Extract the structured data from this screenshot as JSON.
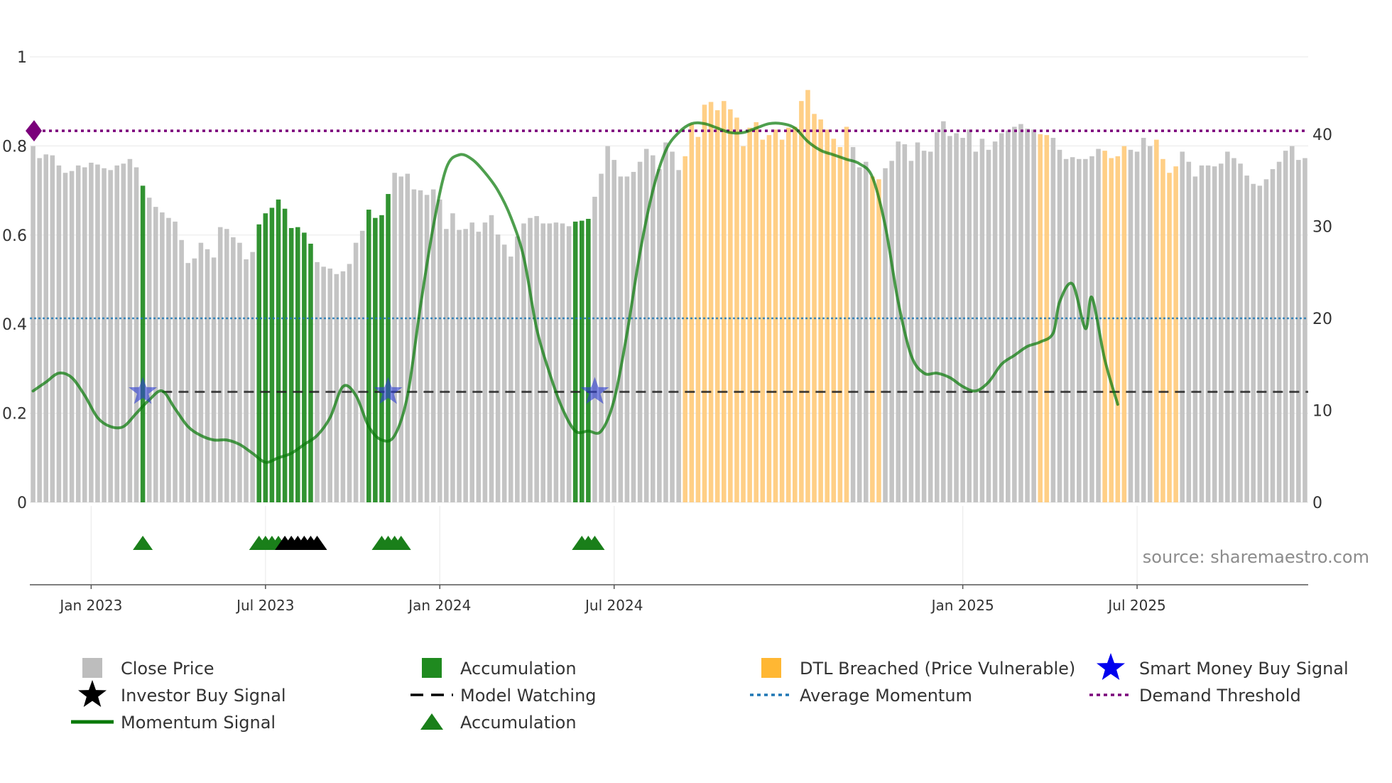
{
  "chart_data": {
    "type": "bar",
    "title": "",
    "source": "source: sharemaestro.com",
    "left_axis": {
      "range": [
        0,
        1
      ],
      "ticks": [
        0,
        0.2,
        0.4,
        0.6,
        0.8,
        1
      ],
      "tick_labels": [
        "0",
        "0.2",
        "0.4",
        "0.6",
        "0.8",
        "1"
      ]
    },
    "right_axis": {
      "range": [
        0,
        48.4
      ],
      "ticks": [
        0,
        10,
        20,
        30,
        40
      ],
      "tick_labels": [
        "0",
        "10",
        "20",
        "30",
        "40"
      ]
    },
    "x_axis": {
      "tick_labels": [
        "Jan 2023",
        "Jul 2023",
        "Jan 2024",
        "Jul 2024",
        "Jan 2025",
        "Jul 2025"
      ],
      "tick_bar_index": [
        9,
        36,
        63,
        90,
        144,
        171
      ]
    },
    "series": {
      "close_price": {
        "name": "Close Price",
        "values": [
          38.7,
          37.4,
          37.8,
          37.7,
          36.6,
          35.8,
          36.0,
          36.6,
          36.4,
          36.9,
          36.7,
          36.3,
          36.1,
          36.6,
          36.8,
          37.3,
          36.4,
          34.4,
          33.1,
          32.1,
          31.5,
          30.9,
          30.5,
          28.5,
          26.0,
          26.5,
          28.2,
          27.5,
          26.6,
          29.9,
          29.7,
          28.8,
          28.2,
          26.4,
          27.2,
          30.2,
          31.4,
          32.0,
          32.9,
          31.9,
          29.8,
          29.9,
          29.3,
          28.1,
          26.1,
          25.6,
          25.4,
          24.8,
          25.1,
          25.9,
          28.2,
          29.5,
          31.8,
          30.9,
          31.2,
          33.5,
          35.8,
          35.4,
          35.7,
          34.0,
          33.9,
          33.4,
          34.0,
          32.9,
          29.7,
          31.4,
          29.6,
          29.7,
          30.4,
          29.4,
          30.4,
          31.2,
          29.1,
          28.0,
          26.7,
          28.9,
          30.3,
          30.9,
          31.1,
          30.3,
          30.3,
          30.4,
          30.3,
          30.0,
          30.5,
          30.6,
          30.8,
          33.2,
          35.7,
          38.7,
          37.2,
          35.4,
          35.4,
          35.9,
          37.0,
          38.4,
          37.7,
          36.2,
          39.1,
          38.1,
          36.1,
          37.6,
          41.1,
          39.7,
          43.2,
          43.5,
          42.6,
          43.6,
          42.7,
          41.8,
          38.7,
          40.7,
          41.3,
          39.4,
          39.9,
          40.5,
          39.4,
          40.7,
          40.8,
          43.6,
          44.8,
          42.2,
          41.6,
          40.5,
          39.5,
          38.6,
          40.8,
          38.6,
          36.4,
          37.0,
          35.4,
          35.1,
          36.3,
          37.1,
          39.2,
          38.9,
          37.1,
          39.1,
          38.2,
          38.1,
          40.2,
          41.4,
          39.8,
          40.1,
          39.6,
          40.5,
          38.1,
          39.5,
          38.3,
          39.2,
          40.1,
          40.4,
          40.8,
          41.1,
          40.6,
          40.5,
          40.0,
          39.9,
          39.6,
          38.3,
          37.3,
          37.5,
          37.3,
          37.3,
          37.6,
          38.4,
          38.2,
          37.4,
          37.6,
          38.7,
          38.3,
          38.1,
          39.6,
          38.7,
          39.4,
          37.3,
          35.8,
          36.5,
          38.1,
          37.0,
          35.4,
          36.6,
          36.6,
          36.5,
          36.8,
          38.1,
          37.4,
          36.8,
          35.5,
          34.6,
          34.4,
          35.1,
          36.2,
          37.0,
          38.2,
          38.7,
          37.2,
          37.4
        ]
      },
      "accumulation_bars": {
        "name": "Accumulation",
        "color": "#1f8a1f",
        "indices": [
          17,
          35,
          36,
          37,
          38,
          39,
          40,
          41,
          42,
          43,
          52,
          53,
          54,
          55,
          84,
          85,
          86
        ]
      },
      "dtl_breached": {
        "name": "DTL Breached (Price Vulnerable)",
        "color": "#ffcc80",
        "ranges": [
          [
            101,
            111
          ],
          [
            112,
            113
          ],
          [
            114,
            126
          ],
          [
            130,
            131
          ],
          [
            156,
            157
          ],
          [
            166,
            169
          ],
          [
            174,
            177
          ]
        ]
      },
      "momentum": {
        "name": "Momentum Signal",
        "points": [
          [
            0,
            0.25
          ],
          [
            2,
            0.27
          ],
          [
            4,
            0.29
          ],
          [
            6,
            0.28
          ],
          [
            8,
            0.24
          ],
          [
            10,
            0.19
          ],
          [
            12,
            0.17
          ],
          [
            14,
            0.17
          ],
          [
            16,
            0.2
          ],
          [
            18,
            0.23
          ],
          [
            20,
            0.25
          ],
          [
            22,
            0.21
          ],
          [
            24,
            0.17
          ],
          [
            26,
            0.15
          ],
          [
            28,
            0.14
          ],
          [
            30,
            0.14
          ],
          [
            32,
            0.13
          ],
          [
            34,
            0.11
          ],
          [
            36,
            0.09
          ],
          [
            38,
            0.1
          ],
          [
            40,
            0.11
          ],
          [
            42,
            0.13
          ],
          [
            44,
            0.15
          ],
          [
            46,
            0.19
          ],
          [
            48,
            0.26
          ],
          [
            50,
            0.24
          ],
          [
            52,
            0.17
          ],
          [
            54,
            0.14
          ],
          [
            56,
            0.15
          ],
          [
            58,
            0.24
          ],
          [
            60,
            0.44
          ],
          [
            62,
            0.62
          ],
          [
            64,
            0.75
          ],
          [
            66,
            0.78
          ],
          [
            68,
            0.77
          ],
          [
            70,
            0.74
          ],
          [
            72,
            0.7
          ],
          [
            74,
            0.64
          ],
          [
            76,
            0.55
          ],
          [
            78,
            0.39
          ],
          [
            80,
            0.29
          ],
          [
            82,
            0.21
          ],
          [
            84,
            0.16
          ],
          [
            86,
            0.16
          ],
          [
            88,
            0.16
          ],
          [
            90,
            0.23
          ],
          [
            92,
            0.38
          ],
          [
            94,
            0.56
          ],
          [
            96,
            0.7
          ],
          [
            98,
            0.79
          ],
          [
            100,
            0.83
          ],
          [
            102,
            0.85
          ],
          [
            104,
            0.85
          ],
          [
            106,
            0.84
          ],
          [
            108,
            0.83
          ],
          [
            110,
            0.83
          ],
          [
            112,
            0.84
          ],
          [
            114,
            0.85
          ],
          [
            116,
            0.85
          ],
          [
            118,
            0.84
          ],
          [
            120,
            0.81
          ],
          [
            122,
            0.79
          ],
          [
            124,
            0.78
          ],
          [
            126,
            0.77
          ],
          [
            128,
            0.76
          ],
          [
            130,
            0.73
          ],
          [
            132,
            0.62
          ],
          [
            134,
            0.45
          ],
          [
            136,
            0.33
          ],
          [
            138,
            0.29
          ],
          [
            140,
            0.29
          ],
          [
            142,
            0.28
          ],
          [
            144,
            0.26
          ],
          [
            146,
            0.25
          ],
          [
            148,
            0.27
          ],
          [
            150,
            0.31
          ],
          [
            152,
            0.33
          ],
          [
            154,
            0.35
          ],
          [
            156,
            0.36
          ],
          [
            158,
            0.38
          ],
          [
            159,
            0.45
          ],
          [
            161,
            0.49
          ],
          [
            163,
            0.39
          ],
          [
            164,
            0.46
          ],
          [
            166,
            0.32
          ],
          [
            168,
            0.22
          ]
        ]
      },
      "model_watching": {
        "name": "Model Watching",
        "value": 12.0
      },
      "average_momentum": {
        "name": "Average Momentum",
        "value": 0.413
      },
      "demand_threshold": {
        "name": "Demand Threshold",
        "value": 0.834
      },
      "smart_money_buy_signals": {
        "name": "Smart Money Buy Signal",
        "indices": [
          17,
          55,
          87
        ]
      },
      "accumulation_markers": {
        "name": "Accumulation",
        "indices": [
          17,
          35,
          36,
          37,
          38,
          54,
          55,
          56,
          57,
          85,
          86,
          87
        ]
      },
      "investor_buy_signals": {
        "name": "Investor Buy Signal",
        "indices": [
          39,
          40,
          41,
          42,
          43,
          44
        ]
      }
    }
  },
  "legend": [
    {
      "label": "Close Price",
      "symbol": "square",
      "color": "#bdbdbd"
    },
    {
      "label": "Accumulation",
      "symbol": "square",
      "color": "#1f8a1f"
    },
    {
      "label": "DTL Breached (Price Vulnerable)",
      "symbol": "square",
      "color": "#ffb733"
    },
    {
      "label": "Smart Money Buy Signal",
      "symbol": "star",
      "color": "#0000ee"
    },
    {
      "label": "Investor Buy Signal",
      "symbol": "star",
      "color": "#000000"
    },
    {
      "label": "Model Watching",
      "symbol": "dash",
      "color": "#000000"
    },
    {
      "label": "Average Momentum",
      "symbol": "dot",
      "color": "#1f77b4"
    },
    {
      "label": "Demand Threshold",
      "symbol": "dot",
      "color": "#7b007b"
    },
    {
      "label": "Momentum Signal",
      "symbol": "line",
      "color": "#0a7a0a"
    },
    {
      "label": "Accumulation",
      "symbol": "triangle",
      "color": "#1a7f1a"
    }
  ]
}
